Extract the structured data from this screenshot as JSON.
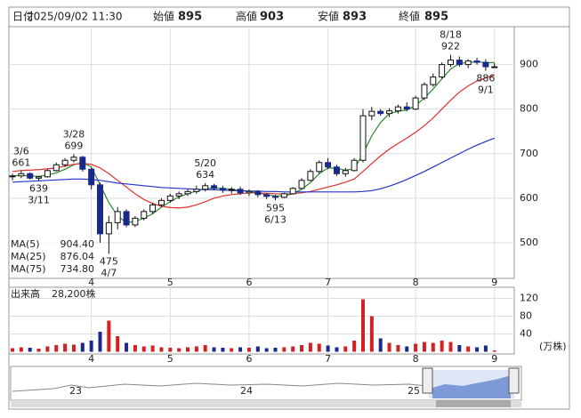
{
  "chart_data": {
    "type": "candlestick",
    "header": [
      {
        "label": "日付",
        "value": "2025/09/02 11:30"
      },
      {
        "label": "始値",
        "value": 895
      },
      {
        "label": "高値",
        "value": 903
      },
      {
        "label": "安値",
        "value": 893
      },
      {
        "label": "終値",
        "value": 895
      }
    ],
    "open": [
      648,
      650,
      655,
      645,
      648,
      662,
      675,
      685,
      692,
      665,
      630,
      520,
      545,
      570,
      540,
      555,
      570,
      585,
      595,
      605,
      610,
      615,
      620,
      628,
      622,
      618,
      620,
      612,
      615,
      608,
      604,
      602,
      610,
      622,
      640,
      660,
      680,
      670,
      655,
      662,
      685,
      785,
      795,
      790,
      796,
      805,
      800,
      825,
      855,
      872,
      900,
      910,
      900,
      908,
      905,
      895
    ],
    "high": [
      655,
      661,
      658,
      650,
      665,
      680,
      690,
      699,
      695,
      668,
      635,
      560,
      580,
      575,
      560,
      575,
      590,
      600,
      610,
      615,
      620,
      628,
      634,
      632,
      628,
      625,
      626,
      620,
      618,
      612,
      608,
      612,
      625,
      645,
      665,
      685,
      690,
      675,
      668,
      690,
      800,
      805,
      800,
      802,
      810,
      815,
      830,
      860,
      880,
      905,
      922,
      918,
      912,
      915,
      912,
      903
    ],
    "low": [
      640,
      645,
      642,
      639,
      646,
      660,
      670,
      680,
      660,
      620,
      500,
      475,
      530,
      535,
      535,
      550,
      565,
      580,
      590,
      598,
      605,
      610,
      615,
      618,
      612,
      610,
      608,
      605,
      602,
      598,
      595,
      600,
      608,
      620,
      638,
      655,
      665,
      650,
      648,
      660,
      680,
      775,
      785,
      782,
      790,
      795,
      798,
      820,
      850,
      868,
      895,
      895,
      892,
      900,
      886,
      893
    ],
    "close": [
      650,
      655,
      645,
      648,
      662,
      675,
      685,
      692,
      665,
      630,
      520,
      545,
      570,
      540,
      555,
      570,
      585,
      595,
      605,
      610,
      615,
      620,
      628,
      622,
      618,
      620,
      612,
      615,
      608,
      604,
      602,
      610,
      622,
      640,
      660,
      680,
      670,
      655,
      662,
      685,
      785,
      795,
      790,
      796,
      805,
      800,
      825,
      855,
      872,
      900,
      910,
      900,
      908,
      905,
      895,
      895
    ],
    "up_color": "#ffffff",
    "down_color": "#1a2a8c",
    "ylim": [
      420,
      985
    ],
    "yticks": [
      500,
      600,
      700,
      800,
      900
    ],
    "xticks": [
      {
        "value": 9,
        "label": "4"
      },
      {
        "value": 18,
        "label": "5"
      },
      {
        "value": 27,
        "label": "6"
      },
      {
        "value": 36,
        "label": "7"
      },
      {
        "value": 46,
        "label": "8"
      },
      {
        "value": 55,
        "label": "9"
      }
    ],
    "grid": true,
    "series": [
      {
        "name": "MA(5)",
        "color": "#2a8a2a",
        "latest": {
          "value": 904.4,
          "label": "904.40"
        },
        "values": [
          650,
          651,
          650,
          649,
          652,
          657,
          665,
          675,
          680,
          670,
          630,
          590,
          560,
          545,
          548,
          555,
          565,
          580,
          592,
          603,
          610,
          616,
          621,
          623,
          622,
          620,
          617,
          615,
          612,
          608,
          605,
          605,
          610,
          620,
          635,
          655,
          668,
          667,
          663,
          666,
          700,
          740,
          770,
          790,
          795,
          798,
          808,
          825,
          845,
          868,
          890,
          902,
          905,
          906,
          904,
          904.4
        ]
      },
      {
        "name": "MA(25)",
        "color": "#e03030",
        "latest": 876.04,
        "values": [
          660,
          662,
          663,
          664,
          666,
          668,
          672,
          676,
          678,
          676,
          668,
          655,
          640,
          625,
          610,
          597,
          588,
          582,
          579,
          578,
          580,
          585,
          592,
          600,
          605,
          608,
          610,
          612,
          612,
          611,
          610,
          609,
          610,
          612,
          615,
          620,
          625,
          630,
          636,
          643,
          660,
          678,
          695,
          710,
          723,
          735,
          748,
          763,
          780,
          800,
          820,
          838,
          852,
          863,
          870,
          876.04
        ]
      },
      {
        "name": "MA(75)",
        "color": "#2233cc",
        "latest": {
          "value": 734.8,
          "label": "734.80"
        },
        "values": [
          636,
          637,
          638,
          639,
          640,
          641,
          642,
          643,
          643,
          642,
          640,
          637,
          634,
          632,
          630,
          628,
          626,
          624,
          623,
          622,
          621,
          620,
          619,
          619,
          618,
          617,
          617,
          616,
          616,
          615,
          615,
          614,
          614,
          614,
          614,
          614,
          614,
          614,
          614,
          614,
          615,
          617,
          621,
          627,
          634,
          642,
          651,
          660,
          670,
          680,
          690,
          700,
          710,
          719,
          727,
          734.8
        ]
      }
    ],
    "annotations": [
      {
        "date": "3/6",
        "price": 661
      },
      {
        "date": "3/11",
        "price": 639
      },
      {
        "date": "3/28",
        "price": 699
      },
      {
        "date": "4/7",
        "price": 475
      },
      {
        "date": "5/20",
        "price": 634
      },
      {
        "date": "6/13",
        "price": 595
      },
      {
        "date": "8/18",
        "price": 922
      },
      {
        "date": "9/1",
        "price": 886
      }
    ],
    "volume": {
      "title": "出来高",
      "latest": {
        "value": 28200,
        "label": "28,200株"
      },
      "unit": "(万株)",
      "values": [
        8,
        10,
        9,
        7,
        12,
        15,
        18,
        16,
        20,
        25,
        45,
        70,
        35,
        20,
        15,
        12,
        14,
        10,
        9,
        8,
        10,
        12,
        15,
        10,
        9,
        8,
        10,
        9,
        12,
        8,
        9,
        10,
        12,
        15,
        20,
        18,
        14,
        10,
        12,
        25,
        118,
        80,
        30,
        20,
        15,
        12,
        18,
        22,
        20,
        25,
        22,
        15,
        12,
        10,
        14,
        2.82
      ],
      "up_color": "#d42020",
      "down_color": "#1a2a8c",
      "ylim": [
        -5,
        145
      ],
      "yticks": [
        40,
        80,
        120
      ]
    },
    "navigator": {
      "labels": [
        "23",
        "24",
        "25"
      ]
    }
  }
}
